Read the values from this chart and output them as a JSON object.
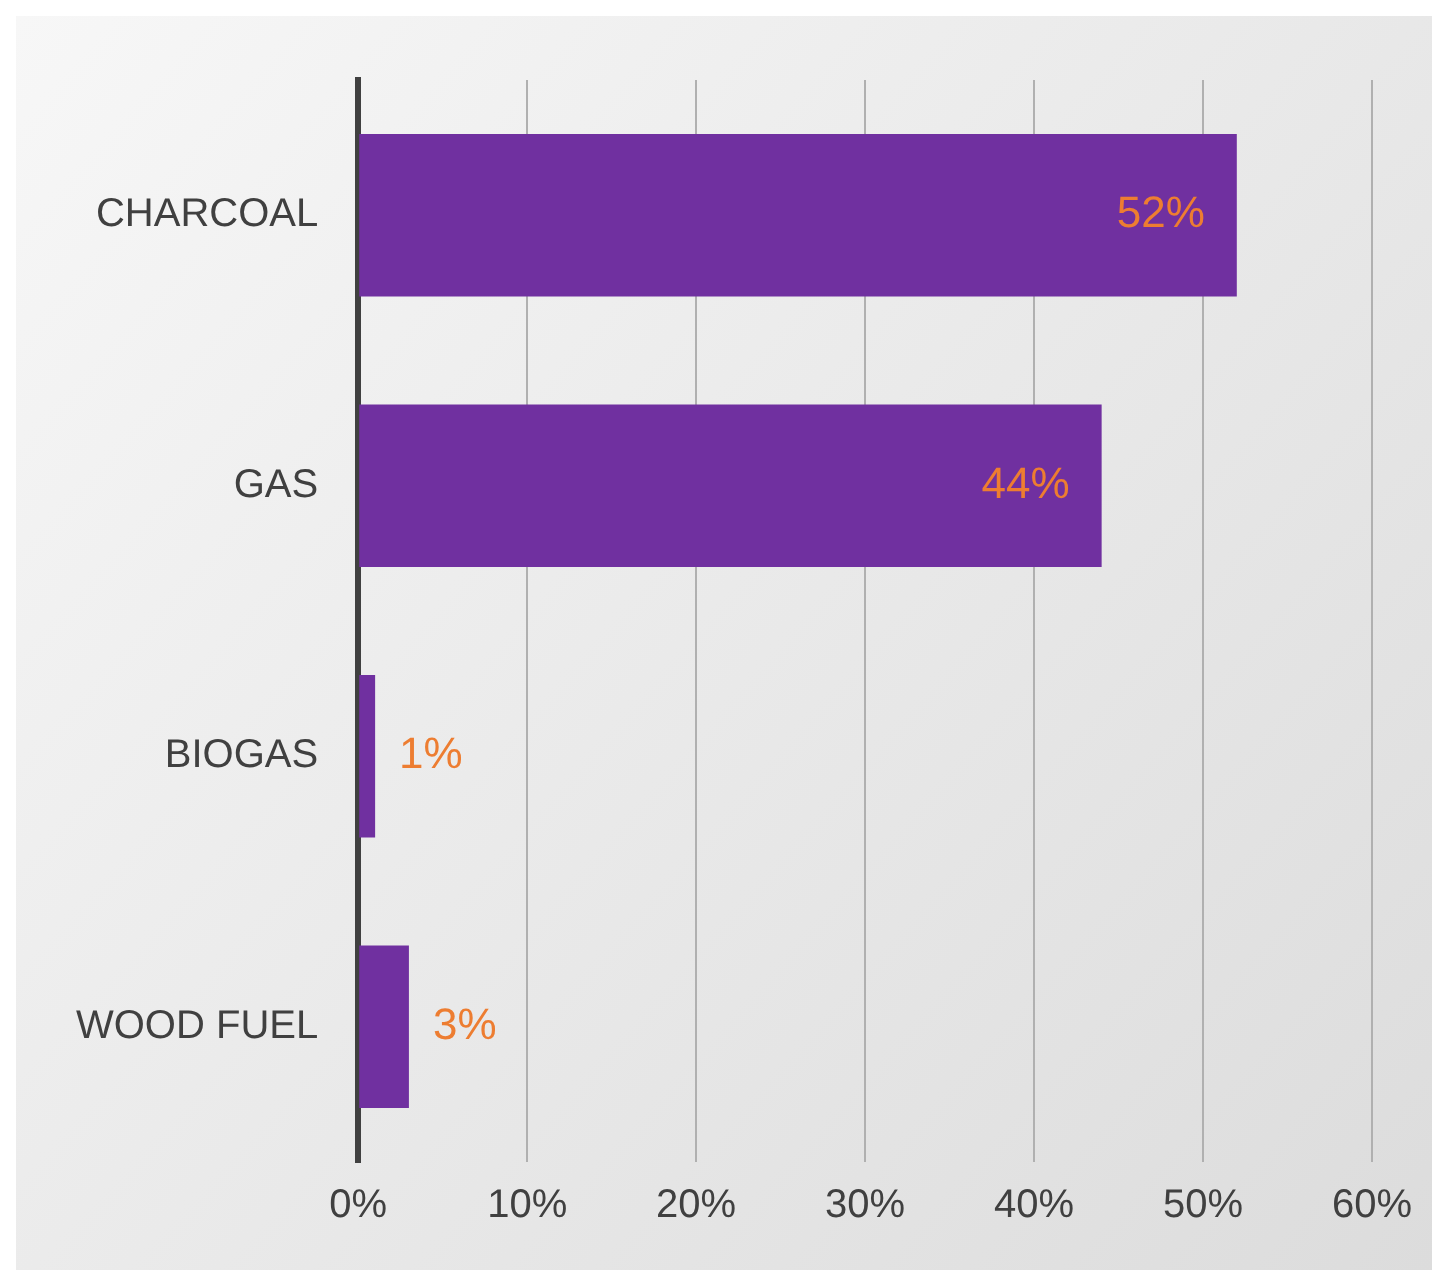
{
  "chart_data": {
    "type": "bar",
    "orientation": "horizontal",
    "categories": [
      "CHARCOAL",
      "GAS",
      "BIOGAS",
      "WOOD FUEL"
    ],
    "values": [
      52,
      44,
      1,
      3
    ],
    "color": "#7030a0",
    "value_labels": [
      "52%",
      "44%",
      "1%",
      "3%"
    ],
    "xlim": [
      0,
      60
    ],
    "xticks": [
      {
        "value": 0,
        "label": "0%"
      },
      {
        "value": 10,
        "label": "10%"
      },
      {
        "value": 20,
        "label": "20%"
      },
      {
        "value": 30,
        "label": "30%"
      },
      {
        "value": 40,
        "label": "40%"
      },
      {
        "value": 50,
        "label": "50%"
      },
      {
        "value": 60,
        "label": "60%"
      }
    ],
    "grid": "x",
    "legend": false
  }
}
